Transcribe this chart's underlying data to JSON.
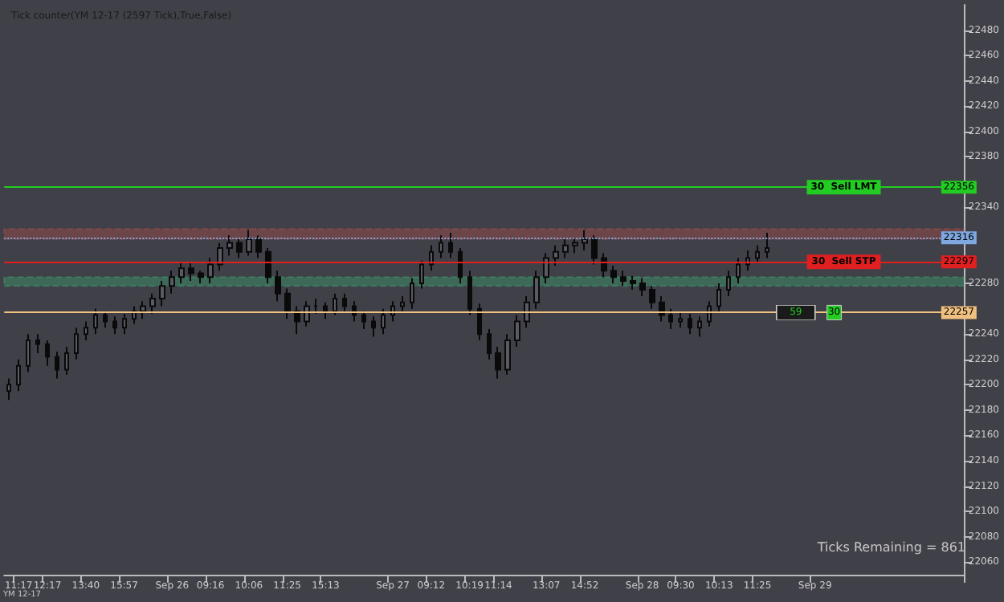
{
  "chart_data": {
    "type": "candlestick",
    "title": "Tick counter(YM 12-17 (2597 Tick),True,False)",
    "categories": [
      null,
      "11:17",
      null,
      null,
      "12:17",
      null,
      null,
      null,
      "13:40",
      null,
      null,
      null,
      "15:57",
      null,
      null,
      null,
      null,
      "Sep 26",
      null,
      null,
      null,
      "09:16",
      null,
      null,
      null,
      "10:06",
      null,
      null,
      null,
      "11:25",
      null,
      null,
      null,
      "15:13",
      null,
      null,
      null,
      null,
      null,
      null,
      "Sep 27",
      null,
      null,
      null,
      "09:12",
      null,
      null,
      null,
      "10:19",
      null,
      null,
      "11:14",
      null,
      null,
      null,
      null,
      "13:07",
      null,
      null,
      null,
      "14:52",
      null,
      null,
      null,
      null,
      null,
      "Sep 28",
      null,
      null,
      null,
      "09:30",
      null,
      null,
      null,
      "10:13",
      null,
      null,
      null,
      "11:25",
      null,
      null,
      null,
      null,
      null,
      "Sep 29",
      null,
      null,
      null,
      null,
      null,
      null,
      null,
      null,
      null,
      null,
      null,
      null,
      null,
      null,
      null
    ],
    "ohlc": [
      [
        22195,
        22205,
        22188,
        22200
      ],
      [
        22200,
        22220,
        22195,
        22215
      ],
      [
        22215,
        22240,
        22210,
        22235
      ],
      [
        22235,
        22240,
        22225,
        22232
      ],
      [
        22232,
        22235,
        22215,
        22222
      ],
      [
        22222,
        22226,
        22205,
        22212
      ],
      [
        22212,
        22230,
        22208,
        22225
      ],
      [
        22225,
        22245,
        22220,
        22240
      ],
      [
        22240,
        22250,
        22235,
        22245
      ],
      [
        22245,
        22260,
        22240,
        22255
      ],
      [
        22255,
        22258,
        22245,
        22250
      ],
      [
        22250,
        22254,
        22240,
        22245
      ],
      [
        22245,
        22256,
        22240,
        22252
      ],
      [
        22252,
        22262,
        22248,
        22258
      ],
      [
        22258,
        22266,
        22252,
        22262
      ],
      [
        22262,
        22272,
        22256,
        22268
      ],
      [
        22268,
        22282,
        22262,
        22278
      ],
      [
        22278,
        22290,
        22272,
        22285
      ],
      [
        22285,
        22296,
        22280,
        22292
      ],
      [
        22292,
        22296,
        22282,
        22288
      ],
      [
        22288,
        22290,
        22280,
        22285
      ],
      [
        22285,
        22300,
        22280,
        22295
      ],
      [
        22295,
        22312,
        22290,
        22308
      ],
      [
        22308,
        22318,
        22302,
        22312
      ],
      [
        22312,
        22315,
        22300,
        22305
      ],
      [
        22305,
        22322,
        22302,
        22315
      ],
      [
        22315,
        22318,
        22300,
        22305
      ],
      [
        22305,
        22308,
        22280,
        22285
      ],
      [
        22285,
        22290,
        22266,
        22272
      ],
      [
        22272,
        22276,
        22252,
        22258
      ],
      [
        22258,
        22262,
        22240,
        22250
      ],
      [
        22250,
        22266,
        22246,
        22262
      ],
      [
        22262,
        22268,
        22256,
        22262
      ],
      [
        22262,
        22265,
        22252,
        22258
      ],
      [
        22258,
        22272,
        22255,
        22268
      ],
      [
        22268,
        22272,
        22258,
        22262
      ],
      [
        22262,
        22266,
        22250,
        22255
      ],
      [
        22255,
        22258,
        22244,
        22250
      ],
      [
        22250,
        22254,
        22238,
        22245
      ],
      [
        22245,
        22260,
        22240,
        22255
      ],
      [
        22255,
        22266,
        22250,
        22262
      ],
      [
        22262,
        22270,
        22258,
        22265
      ],
      [
        22265,
        22284,
        22260,
        22280
      ],
      [
        22280,
        22298,
        22276,
        22295
      ],
      [
        22295,
        22310,
        22290,
        22305
      ],
      [
        22305,
        22318,
        22300,
        22312
      ],
      [
        22312,
        22320,
        22300,
        22305
      ],
      [
        22305,
        22308,
        22280,
        22285
      ],
      [
        22285,
        22290,
        22255,
        22260
      ],
      [
        22260,
        22264,
        22235,
        22240
      ],
      [
        22240,
        22244,
        22220,
        22225
      ],
      [
        22225,
        22230,
        22205,
        22212
      ],
      [
        22212,
        22240,
        22208,
        22235
      ],
      [
        22235,
        22255,
        22230,
        22250
      ],
      [
        22250,
        22270,
        22245,
        22265
      ],
      [
        22265,
        22290,
        22260,
        22285
      ],
      [
        22285,
        22304,
        22280,
        22300
      ],
      [
        22300,
        22310,
        22294,
        22305
      ],
      [
        22305,
        22315,
        22300,
        22310
      ],
      [
        22310,
        22316,
        22304,
        22312
      ],
      [
        22312,
        22322,
        22306,
        22315
      ],
      [
        22315,
        22318,
        22295,
        22300
      ],
      [
        22300,
        22304,
        22285,
        22290
      ],
      [
        22290,
        22294,
        22280,
        22285
      ],
      [
        22285,
        22290,
        22278,
        22282
      ],
      [
        22282,
        22286,
        22275,
        22280
      ],
      [
        22280,
        22284,
        22270,
        22275
      ],
      [
        22275,
        22278,
        22260,
        22265
      ],
      [
        22265,
        22270,
        22250,
        22255
      ],
      [
        22255,
        22260,
        22244,
        22250
      ],
      [
        22250,
        22258,
        22245,
        22252
      ],
      [
        22252,
        22256,
        22240,
        22245
      ],
      [
        22245,
        22254,
        22238,
        22250
      ],
      [
        22250,
        22266,
        22246,
        22262
      ],
      [
        22262,
        22280,
        22258,
        22275
      ],
      [
        22275,
        22290,
        22270,
        22285
      ],
      [
        22285,
        22300,
        22280,
        22295
      ],
      [
        22295,
        22306,
        22290,
        22300
      ],
      [
        22300,
        22310,
        22296,
        22305
      ],
      [
        22305,
        22320,
        22300,
        22308
      ],
      null,
      null,
      null,
      null,
      null,
      null,
      null,
      null,
      null,
      null,
      null,
      null,
      null,
      null,
      null,
      null,
      null,
      null,
      null,
      null
    ],
    "ylim": [
      22050,
      22500
    ],
    "yticks": [
      22060,
      22080,
      22100,
      22120,
      22140,
      22160,
      22180,
      22200,
      22220,
      22240,
      {
        "value": 22260,
        "label": null
      },
      22280,
      {
        "value": 22300,
        "label": null
      },
      {
        "value": 22320,
        "label": null
      },
      22340,
      {
        "value": 22360,
        "label": null
      },
      22380,
      22400,
      22420,
      22440,
      22460,
      22480
    ],
    "grid": false,
    "ref_lines": [
      {
        "axis": "y",
        "value": 22356,
        "label": "30  Sell LMT",
        "color": "#22cc22"
      },
      {
        "axis": "y",
        "value": 22316,
        "label": null,
        "color": "#7fa8e0",
        "line_style": "dotted"
      },
      {
        "axis": "y",
        "value": 22297,
        "label": "30  Sell STP",
        "color": "#e02020"
      },
      {
        "axis": "y",
        "value": 22257,
        "label": null,
        "color": "#f0c080"
      }
    ],
    "bands": [
      {
        "axis": "y",
        "from": 22315,
        "to": 22323,
        "color": "#c0504d"
      },
      {
        "axis": "y",
        "from": 22278,
        "to": 22285,
        "color": "#3cb878"
      }
    ],
    "annotations": [
      "Ticks Remaining = 861",
      "YM 12-17",
      {
        "text": "22356",
        "y": 22356
      },
      {
        "text": "22316",
        "y": 22316
      },
      {
        "text": "22297",
        "y": 22297
      },
      {
        "text": "22257",
        "y": 22257
      },
      {
        "text": "59",
        "y": 22257
      },
      {
        "text": "30",
        "y": 22257
      }
    ]
  }
}
